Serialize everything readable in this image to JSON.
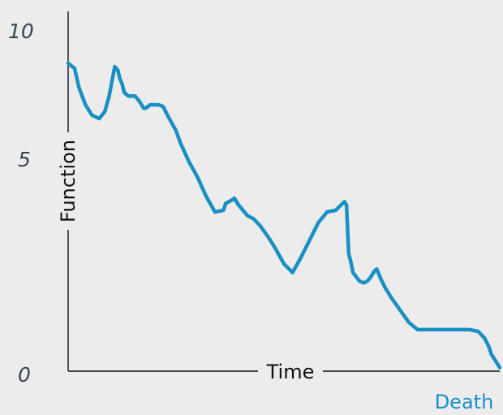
{
  "chart_data": {
    "type": "line",
    "title": "",
    "xlabel": "Time",
    "ylabel": "Function",
    "ylim": [
      0,
      10
    ],
    "xlim": [
      0,
      100
    ],
    "y_ticks": [
      "0",
      "5",
      "10"
    ],
    "end_annotation": "Death",
    "grid": false,
    "colors": {
      "line": "#1a8fc4",
      "annotation": "#1a8fc4",
      "axis": "#111111",
      "background": "#ececec"
    },
    "series": [
      {
        "x": [
          0,
          1.5,
          2.5,
          4,
          5.5,
          7.2,
          8.5,
          9.5,
          10.8,
          11.5,
          12,
          12.5,
          13,
          14,
          15.5,
          16.5,
          17.5,
          18,
          19,
          20,
          21,
          22,
          23,
          25,
          26,
          28,
          30,
          32,
          34,
          36,
          36.5,
          38,
          38.5,
          39.5,
          40.5,
          41.5,
          43,
          44.5,
          46.5,
          48,
          50,
          52,
          54,
          56,
          58,
          60,
          62,
          64,
          64.5,
          65,
          65.5,
          66,
          67.5,
          68.5,
          69.3,
          70,
          71,
          71.5,
          72.5,
          73.5,
          75,
          77,
          79,
          81,
          85,
          90,
          93,
          95,
          96.5,
          97.5,
          98,
          99,
          100
        ],
        "y": [
          8.9,
          8.75,
          8.2,
          7.7,
          7.4,
          7.3,
          7.5,
          7.95,
          8.8,
          8.7,
          8.45,
          8.3,
          8.05,
          7.95,
          7.95,
          7.8,
          7.6,
          7.6,
          7.7,
          7.7,
          7.7,
          7.65,
          7.4,
          6.95,
          6.6,
          6.05,
          5.6,
          5.05,
          4.6,
          4.65,
          4.85,
          4.95,
          5.0,
          4.8,
          4.65,
          4.5,
          4.4,
          4.2,
          3.85,
          3.55,
          3.1,
          2.85,
          3.3,
          3.8,
          4.3,
          4.6,
          4.65,
          4.9,
          4.8,
          3.4,
          3.15,
          2.85,
          2.6,
          2.55,
          2.6,
          2.7,
          2.9,
          2.95,
          2.65,
          2.4,
          2.1,
          1.75,
          1.4,
          1.2,
          1.2,
          1.2,
          1.2,
          1.15,
          0.95,
          0.7,
          0.5,
          0.3,
          0.1
        ]
      }
    ]
  }
}
